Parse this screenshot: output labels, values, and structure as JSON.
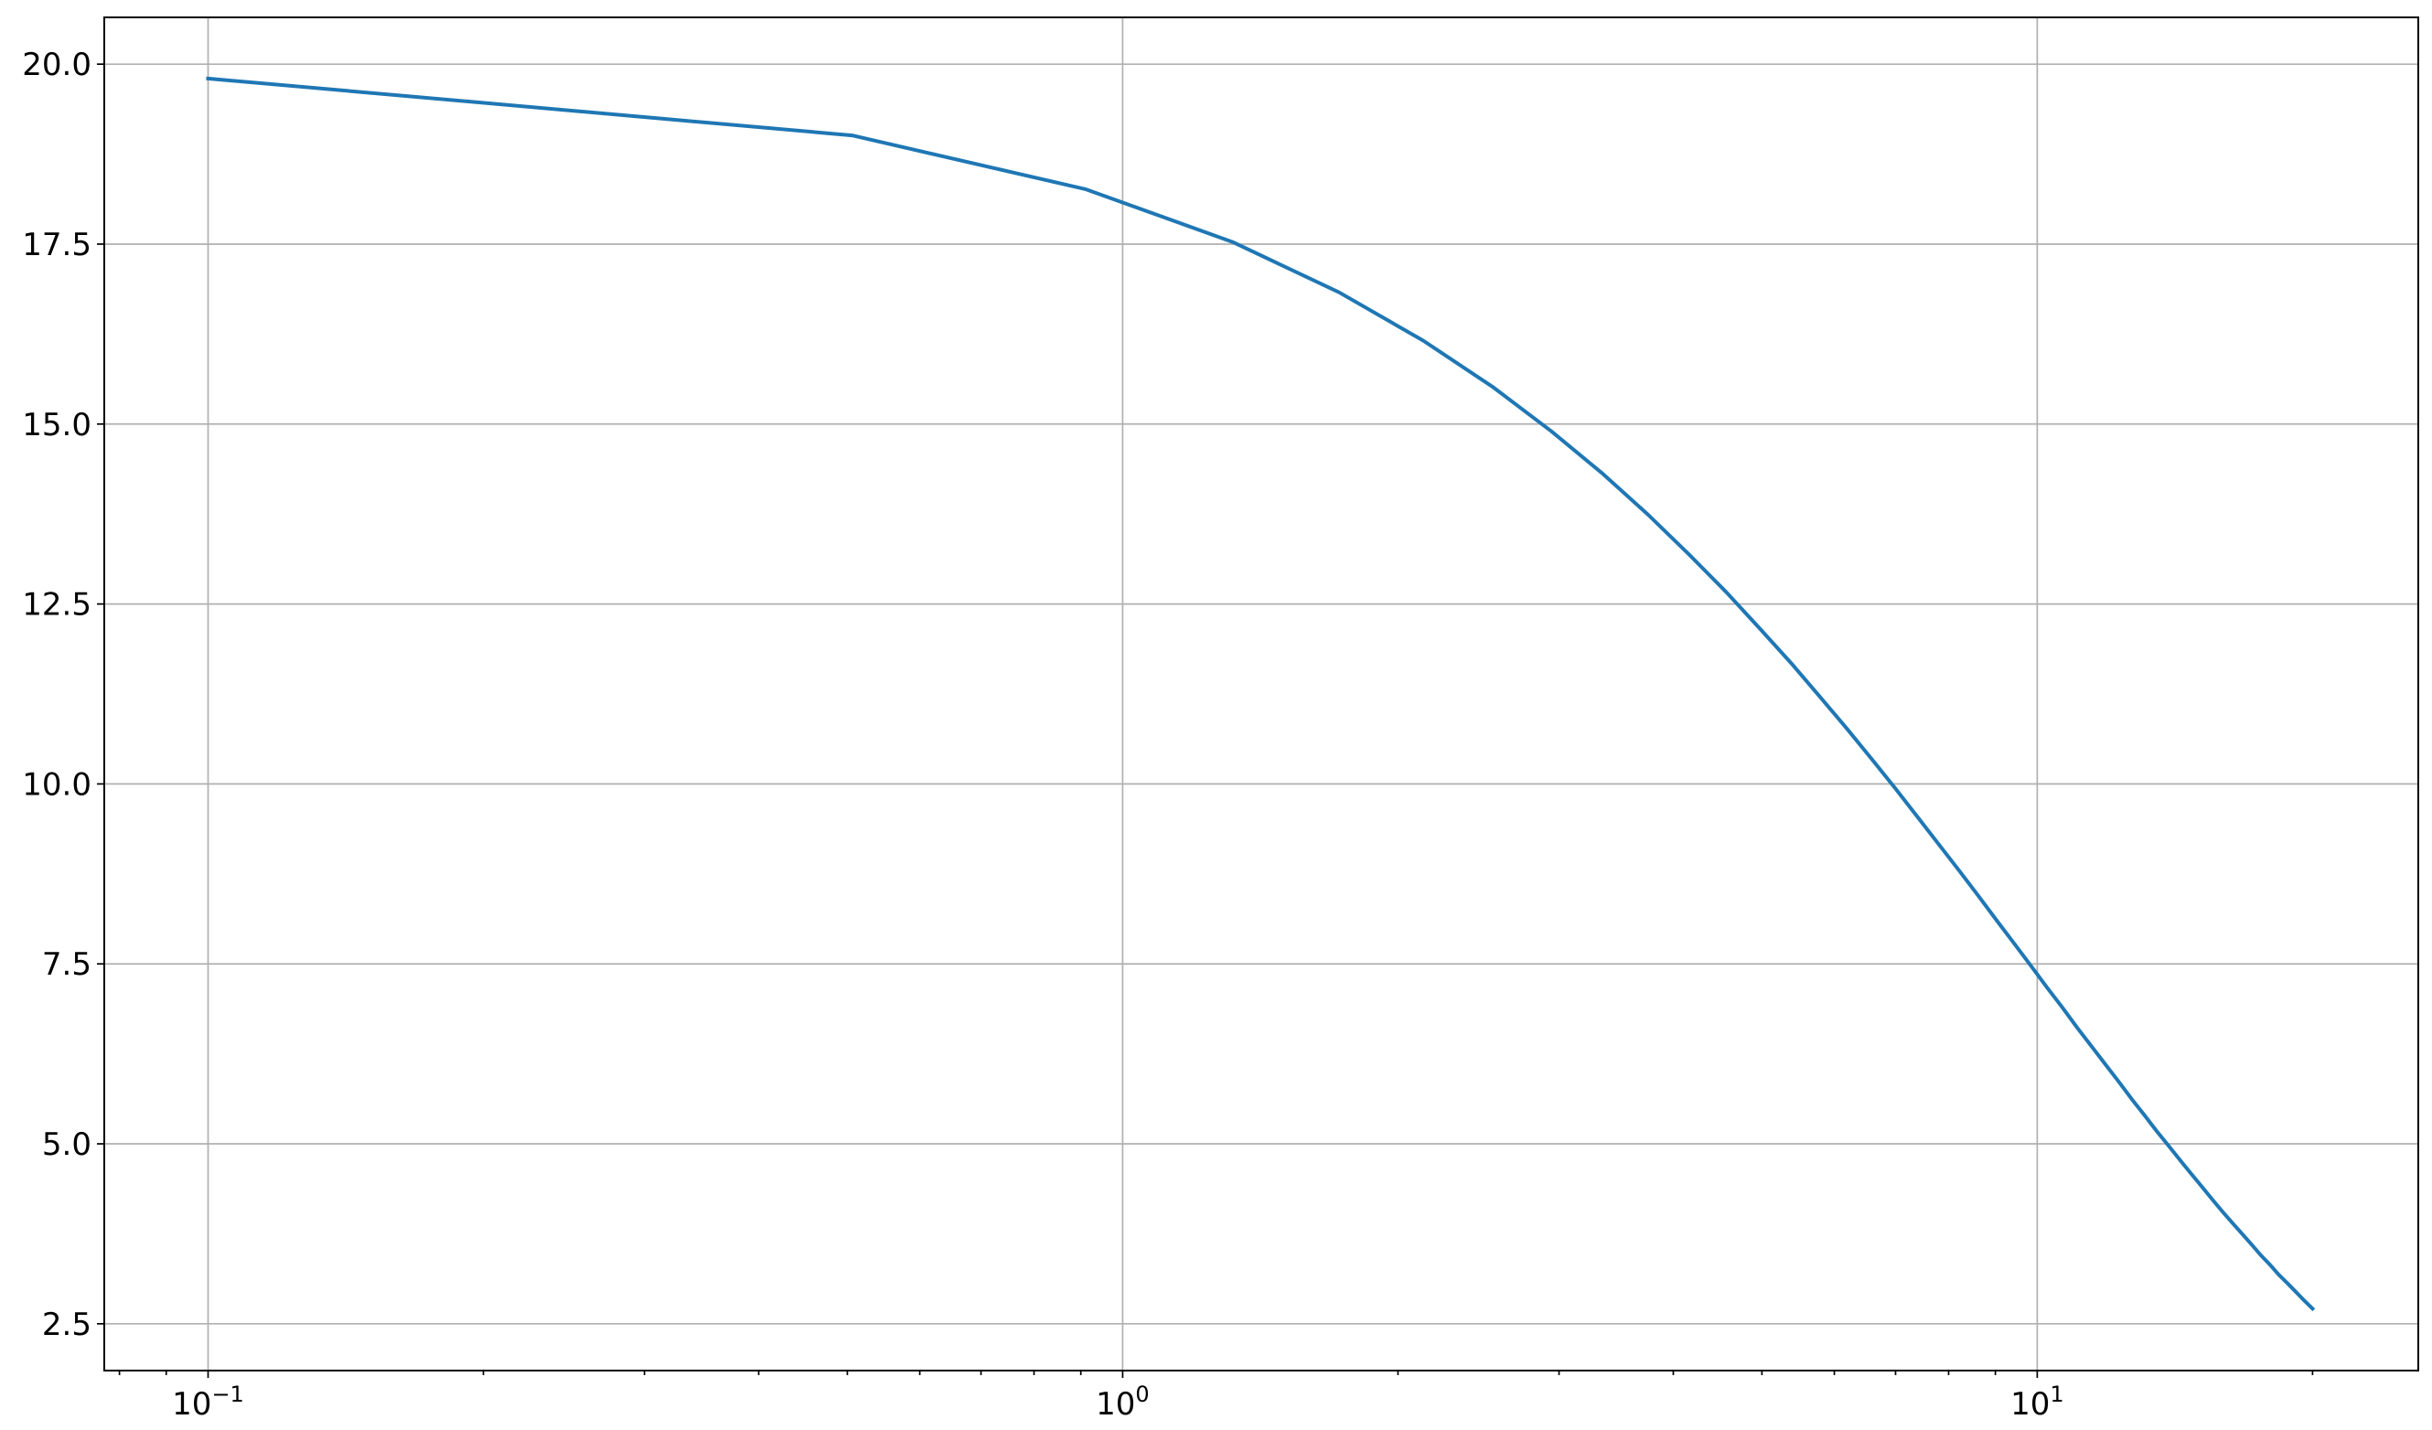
{
  "chart_data": {
    "type": "line",
    "title": "",
    "xlabel": "",
    "ylabel": "",
    "xscale": "log",
    "xlim": [
      0.077,
      26.1
    ],
    "ylim": [
      1.85,
      20.65
    ],
    "grid": true,
    "x_ticks": [
      {
        "value": 0.1,
        "base": "10",
        "exp": "−1"
      },
      {
        "value": 1,
        "base": "10",
        "exp": "0"
      },
      {
        "value": 10,
        "base": "10",
        "exp": "1"
      }
    ],
    "y_ticks": [
      2.5,
      5.0,
      7.5,
      10.0,
      12.5,
      15.0,
      17.5,
      20.0
    ],
    "y_tick_labels": [
      "2.5",
      "5.0",
      "7.5",
      "10.0",
      "12.5",
      "15.0",
      "17.5",
      "20.0"
    ],
    "series": [
      {
        "color": "#1f77b4",
        "x": [
          0.1,
          0.506,
          0.912,
          1.318,
          1.724,
          2.131,
          2.537,
          2.943,
          3.349,
          3.755,
          4.161,
          4.567,
          4.973,
          5.38,
          5.786,
          6.192,
          6.598,
          7.004,
          7.41,
          7.816,
          8.222,
          8.629,
          9.035,
          9.441,
          9.847,
          10.253,
          10.659,
          11.065,
          11.471,
          11.878,
          12.284,
          12.69,
          13.096,
          13.502,
          13.908,
          14.314,
          14.72,
          15.127,
          15.533,
          15.939,
          16.345,
          16.751,
          17.157,
          17.563,
          17.969,
          18.376,
          18.782,
          19.188,
          19.594,
          20.0
        ],
        "y": [
          19.8,
          19.01,
          18.26,
          17.53,
          16.83,
          16.16,
          15.52,
          14.9,
          14.31,
          13.74,
          13.19,
          12.67,
          12.16,
          11.68,
          11.21,
          10.77,
          10.34,
          9.93,
          9.53,
          9.15,
          8.79,
          8.44,
          8.1,
          7.78,
          7.47,
          7.17,
          6.89,
          6.61,
          6.35,
          6.1,
          5.86,
          5.62,
          5.4,
          5.18,
          4.98,
          4.78,
          4.59,
          4.41,
          4.23,
          4.06,
          3.9,
          3.75,
          3.6,
          3.45,
          3.32,
          3.18,
          3.06,
          2.94,
          2.82,
          2.71
        ]
      }
    ]
  }
}
